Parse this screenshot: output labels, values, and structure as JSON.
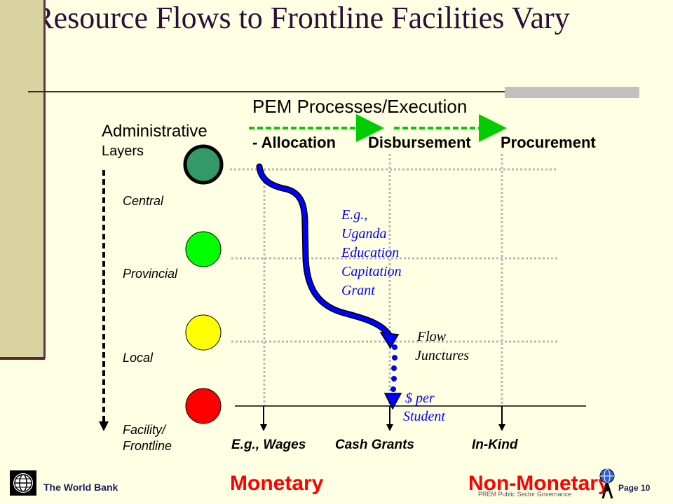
{
  "title": "Resource Flows to Frontline Facilities Vary",
  "pem_heading": "PEM Processes/Execution",
  "columns": [
    {
      "label": "- Allocation"
    },
    {
      "label": "Disbursement"
    },
    {
      "label": "Procurement"
    }
  ],
  "admin_heading_line1": "Administrative",
  "admin_heading_line2": "Layers",
  "layers": [
    {
      "label_line1": "Central",
      "label_line2": "",
      "color": "#339966"
    },
    {
      "label_line1": "Provincial",
      "label_line2": "",
      "color": "#00ff00"
    },
    {
      "label_line1": "Local",
      "label_line2": "",
      "color": "#ffff00"
    },
    {
      "label_line1": "Facility/",
      "label_line2": "Frontline",
      "color": "#ff0000"
    }
  ],
  "example_note": [
    "E.g.,",
    "Uganda",
    "Education",
    "Capitation",
    "Grant"
  ],
  "flow_junctures": [
    "Flow",
    "Junctures"
  ],
  "per_student": [
    "$ per",
    "Student"
  ],
  "bottom_labels": {
    "wages": "E.g., Wages",
    "cash_grants": "Cash Grants",
    "in_kind": "In-Kind"
  },
  "monetary": "Monetary",
  "non_monetary": "Non-Monetary",
  "footer": {
    "org": "The World Bank",
    "sector": "PREM Public Sector Governance",
    "page": "Page 10"
  },
  "colors": {
    "title": "#2b0e3a",
    "flow_blue": "#0000ff",
    "dashed_green": "#00cc00",
    "monetary_red": "#ff0000",
    "sidebar": "#d8d3a0",
    "background": "#ffffe4"
  }
}
